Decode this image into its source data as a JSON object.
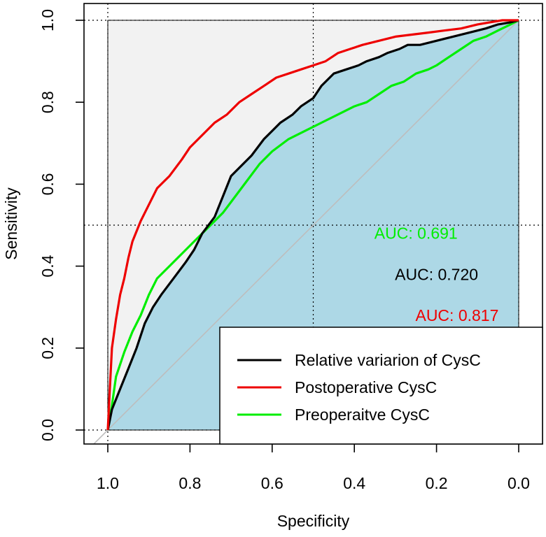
{
  "chart_data": {
    "type": "line",
    "title": "",
    "xlabel": "Specificity",
    "ylabel": "Sensitivity",
    "xlim": [
      1.0,
      0.0
    ],
    "ylim": [
      0.0,
      1.0
    ],
    "x_ticks": [
      "1.0",
      "0.8",
      "0.6",
      "0.4",
      "0.2",
      "0.0"
    ],
    "y_ticks": [
      "0.0",
      "0.2",
      "0.4",
      "0.6",
      "0.8",
      "1.0"
    ],
    "grid": "dotted at 0.0 / 0.5 / 1.0",
    "reference_line": "diagonal (chance)",
    "auc_fill": {
      "colors": {
        "inside": "#add8e6",
        "outside": "#f2f2f2"
      }
    },
    "auc_labels": [
      {
        "text": "AUC: 0.691",
        "color": "#00ee00",
        "specificity": 0.25,
        "sensitivity": 0.48
      },
      {
        "text": "AUC: 0.720",
        "color": "#000000",
        "specificity": 0.2,
        "sensitivity": 0.38
      },
      {
        "text": "AUC: 0.817",
        "color": "#ee0000",
        "specificity": 0.15,
        "sensitivity": 0.28
      }
    ],
    "legend": {
      "position": "bottom-right",
      "entries": [
        {
          "label": "Relative variarion of CysC",
          "color": "#000000"
        },
        {
          "label": "Postoperative CysC",
          "color": "#ee0000"
        },
        {
          "label": "Preoperaitve CysC",
          "color": "#00ee00"
        }
      ]
    },
    "series": [
      {
        "name": "Relative variarion of CysC",
        "color": "#000000",
        "specificity": [
          1.0,
          0.99,
          0.97,
          0.95,
          0.93,
          0.91,
          0.89,
          0.87,
          0.84,
          0.81,
          0.79,
          0.77,
          0.74,
          0.72,
          0.7,
          0.68,
          0.65,
          0.62,
          0.6,
          0.58,
          0.55,
          0.53,
          0.5,
          0.48,
          0.45,
          0.42,
          0.39,
          0.37,
          0.34,
          0.32,
          0.29,
          0.27,
          0.24,
          0.2,
          0.16,
          0.12,
          0.08,
          0.05,
          0.02,
          0.0
        ],
        "sensitivity": [
          0.0,
          0.05,
          0.1,
          0.15,
          0.2,
          0.26,
          0.3,
          0.33,
          0.37,
          0.41,
          0.44,
          0.48,
          0.52,
          0.57,
          0.62,
          0.64,
          0.67,
          0.71,
          0.73,
          0.75,
          0.77,
          0.79,
          0.81,
          0.84,
          0.87,
          0.88,
          0.89,
          0.9,
          0.91,
          0.92,
          0.93,
          0.94,
          0.94,
          0.95,
          0.96,
          0.97,
          0.98,
          0.99,
          0.995,
          1.0
        ]
      },
      {
        "name": "Postoperative CysC",
        "color": "#ee0000",
        "specificity": [
          1.0,
          0.995,
          0.99,
          0.98,
          0.97,
          0.96,
          0.95,
          0.94,
          0.92,
          0.9,
          0.88,
          0.85,
          0.82,
          0.8,
          0.77,
          0.74,
          0.71,
          0.68,
          0.65,
          0.62,
          0.59,
          0.56,
          0.53,
          0.5,
          0.47,
          0.44,
          0.41,
          0.38,
          0.34,
          0.3,
          0.26,
          0.22,
          0.18,
          0.14,
          0.1,
          0.07,
          0.04,
          0.0
        ],
        "sensitivity": [
          0.0,
          0.1,
          0.2,
          0.27,
          0.33,
          0.37,
          0.42,
          0.46,
          0.51,
          0.55,
          0.59,
          0.62,
          0.66,
          0.69,
          0.72,
          0.75,
          0.77,
          0.8,
          0.82,
          0.84,
          0.86,
          0.87,
          0.88,
          0.89,
          0.9,
          0.92,
          0.93,
          0.94,
          0.95,
          0.96,
          0.965,
          0.97,
          0.975,
          0.98,
          0.99,
          0.995,
          1.0,
          1.0
        ]
      },
      {
        "name": "Preoperaitve CysC",
        "color": "#00ee00",
        "specificity": [
          1.0,
          0.99,
          0.98,
          0.96,
          0.94,
          0.92,
          0.9,
          0.88,
          0.85,
          0.82,
          0.79,
          0.76,
          0.72,
          0.69,
          0.66,
          0.63,
          0.6,
          0.56,
          0.52,
          0.48,
          0.44,
          0.4,
          0.37,
          0.34,
          0.31,
          0.28,
          0.25,
          0.22,
          0.2,
          0.17,
          0.14,
          0.11,
          0.08,
          0.05,
          0.02,
          0.0
        ],
        "sensitivity": [
          0.0,
          0.06,
          0.13,
          0.19,
          0.24,
          0.28,
          0.33,
          0.37,
          0.4,
          0.43,
          0.46,
          0.49,
          0.53,
          0.57,
          0.61,
          0.65,
          0.68,
          0.71,
          0.73,
          0.75,
          0.77,
          0.79,
          0.8,
          0.82,
          0.84,
          0.85,
          0.87,
          0.88,
          0.89,
          0.91,
          0.93,
          0.95,
          0.96,
          0.975,
          0.99,
          1.0
        ]
      }
    ]
  }
}
